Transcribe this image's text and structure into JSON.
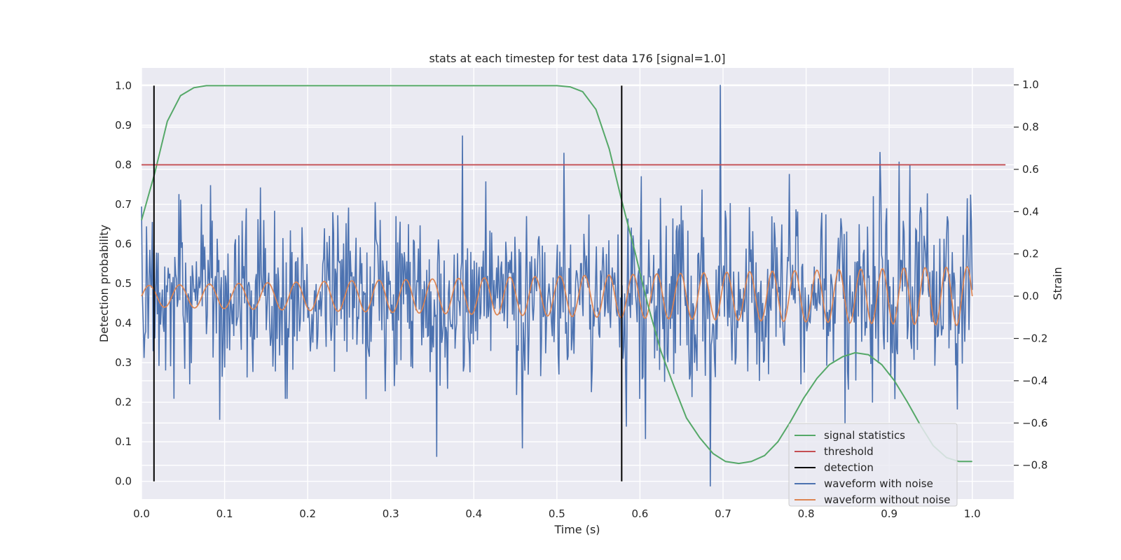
{
  "chart_data": {
    "type": "line",
    "title": "stats at each timestep for test data 176 [signal=1.0]",
    "xlabel": "Time (s)",
    "ylabel_left": "Detection probability",
    "ylabel_right": "Strain",
    "xlim": [
      0.0,
      1.05
    ],
    "ylim_left": [
      -0.045,
      1.045
    ],
    "ylim_right": [
      -0.96,
      1.08
    ],
    "x_ticks": [
      "0.0",
      "0.1",
      "0.2",
      "0.3",
      "0.4",
      "0.5",
      "0.6",
      "0.7",
      "0.8",
      "0.9",
      "1.0"
    ],
    "y_ticks_left": [
      "0.0",
      "0.1",
      "0.2",
      "0.3",
      "0.4",
      "0.5",
      "0.6",
      "0.7",
      "0.8",
      "0.9",
      "1.0"
    ],
    "y_ticks_right": [
      "−0.8",
      "−0.6",
      "−0.4",
      "−0.2",
      "0.0",
      "0.2",
      "0.4",
      "0.6",
      "0.8",
      "1.0"
    ],
    "grid": true,
    "legend_position": "bottom-right",
    "colors": {
      "signal_statistics": "#55a868",
      "threshold": "#c44e52",
      "detection": "#000000",
      "waveform_with_noise": "#4c72b0",
      "waveform_without_noise": "#dd8452",
      "plot_background": "#eaeaf2"
    },
    "series": [
      {
        "name": "signal statistics",
        "axis": "left",
        "x": [
          0.0,
          0.016,
          0.031,
          0.047,
          0.063,
          0.078,
          0.094,
          0.11,
          0.16,
          0.25,
          0.35,
          0.45,
          0.5,
          0.516,
          0.531,
          0.547,
          0.563,
          0.578,
          0.594,
          0.609,
          0.625,
          0.641,
          0.656,
          0.672,
          0.688,
          0.703,
          0.719,
          0.734,
          0.75,
          0.766,
          0.781,
          0.797,
          0.813,
          0.828,
          0.844,
          0.859,
          0.875,
          0.891,
          0.906,
          0.922,
          0.938,
          0.953,
          0.969,
          0.984,
          1.0
        ],
        "values": [
          0.66,
          0.78,
          0.91,
          0.975,
          0.995,
          1.0,
          1.0,
          1.0,
          1.0,
          1.0,
          1.0,
          1.0,
          1.0,
          0.997,
          0.985,
          0.94,
          0.84,
          0.71,
          0.58,
          0.45,
          0.33,
          0.24,
          0.16,
          0.11,
          0.07,
          0.05,
          0.045,
          0.05,
          0.065,
          0.1,
          0.15,
          0.21,
          0.26,
          0.295,
          0.315,
          0.325,
          0.32,
          0.295,
          0.255,
          0.2,
          0.14,
          0.09,
          0.06,
          0.05,
          0.05
        ]
      },
      {
        "name": "threshold",
        "axis": "left",
        "x": [
          0.0,
          1.04
        ],
        "values": [
          0.8,
          0.8
        ]
      },
      {
        "name": "detection",
        "axis": "left",
        "vertical_lines_at_x": [
          0.015,
          0.578
        ],
        "range": [
          0.0,
          1.0
        ]
      },
      {
        "name": "waveform with noise",
        "axis": "right",
        "generated_from": {
          "x_start": 0.0,
          "x_end": 1.0,
          "points": 1000,
          "noise_sd": 0.2,
          "seed": 176,
          "y_min": -0.9,
          "y_max": 1.0,
          "notable_peaks": [
            [
              0.386,
              0.76
            ],
            [
              0.697,
              1.0
            ],
            [
              0.925,
              0.62
            ]
          ],
          "notable_troughs": [
            [
              0.355,
              -0.76
            ],
            [
              0.685,
              -0.9
            ],
            [
              0.458,
              -0.72
            ]
          ]
        }
      },
      {
        "name": "waveform without noise",
        "axis": "right",
        "generated_from": {
          "x_start": 0.0,
          "x_end": 1.0,
          "points": 1000,
          "amplitude_start": 0.05,
          "amplitude_end": 0.14,
          "cycles_per_second_start": 27,
          "cycles_per_second_end": 40
        }
      }
    ]
  }
}
